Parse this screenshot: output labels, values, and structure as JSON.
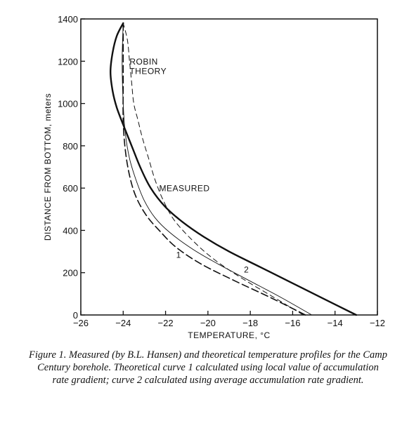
{
  "chart_data": {
    "type": "line",
    "xlabel": "TEMPERATURE, °C",
    "ylabel": "DISTANCE FROM BOTTOM, meters",
    "xlim": [
      -26,
      -12
    ],
    "ylim": [
      0,
      1400
    ],
    "x_ticks": [
      -26,
      -24,
      -22,
      -20,
      -18,
      -16,
      -14,
      -12
    ],
    "y_ticks": [
      0,
      200,
      400,
      600,
      800,
      1000,
      1200,
      1400
    ],
    "grid": false,
    "series": [
      {
        "name": "MEASURED",
        "style": "thick-solid",
        "points": [
          [
            -13.0,
            0
          ],
          [
            -14.5,
            75
          ],
          [
            -16.0,
            150
          ],
          [
            -17.5,
            225
          ],
          [
            -19.0,
            300
          ],
          [
            -20.2,
            370
          ],
          [
            -21.2,
            440
          ],
          [
            -22.0,
            510
          ],
          [
            -22.7,
            600
          ],
          [
            -23.2,
            700
          ],
          [
            -23.6,
            800
          ],
          [
            -24.0,
            900
          ],
          [
            -24.3,
            980
          ],
          [
            -24.5,
            1060
          ],
          [
            -24.6,
            1150
          ],
          [
            -24.5,
            1240
          ],
          [
            -24.3,
            1320
          ],
          [
            -24.0,
            1380
          ]
        ]
      },
      {
        "name": "2",
        "style": "thin-solid",
        "points": [
          [
            -15.1,
            0
          ],
          [
            -16.5,
            80
          ],
          [
            -18.0,
            160
          ],
          [
            -19.5,
            240
          ],
          [
            -20.7,
            310
          ],
          [
            -21.8,
            390
          ],
          [
            -22.5,
            460
          ],
          [
            -23.0,
            540
          ],
          [
            -23.4,
            640
          ],
          [
            -23.7,
            740
          ],
          [
            -23.9,
            860
          ],
          [
            -24.0,
            1000
          ],
          [
            -24.05,
            1200
          ],
          [
            -24.0,
            1380
          ]
        ]
      },
      {
        "name": "1",
        "style": "thick-dashed",
        "points": [
          [
            -15.4,
            0
          ],
          [
            -17.0,
            80
          ],
          [
            -18.7,
            160
          ],
          [
            -20.3,
            240
          ],
          [
            -21.5,
            320
          ],
          [
            -22.3,
            400
          ],
          [
            -22.9,
            470
          ],
          [
            -23.4,
            560
          ],
          [
            -23.7,
            660
          ],
          [
            -23.9,
            780
          ],
          [
            -24.0,
            920
          ],
          [
            -24.0,
            1100
          ],
          [
            -24.0,
            1380
          ]
        ]
      },
      {
        "name": "ROBIN THEORY",
        "style": "thin-dashed",
        "points": [
          [
            -15.5,
            0
          ],
          [
            -17.0,
            90
          ],
          [
            -18.5,
            180
          ],
          [
            -19.8,
            270
          ],
          [
            -20.8,
            360
          ],
          [
            -21.6,
            450
          ],
          [
            -22.1,
            540
          ],
          [
            -22.5,
            640
          ],
          [
            -22.8,
            740
          ],
          [
            -23.1,
            840
          ],
          [
            -23.3,
            920
          ],
          [
            -23.5,
            1000
          ],
          [
            -23.6,
            1100
          ],
          [
            -23.7,
            1200
          ],
          [
            -23.8,
            1300
          ],
          [
            -24.0,
            1380
          ]
        ]
      }
    ],
    "annotations": [
      {
        "text": "ROBIN",
        "x": -23.7,
        "y": 1185
      },
      {
        "text": "THEORY",
        "x": -23.7,
        "y": 1140
      },
      {
        "text": "MEASURED",
        "x": -22.3,
        "y": 585
      },
      {
        "text": "1",
        "x": -21.5,
        "y": 270
      },
      {
        "text": "2",
        "x": -18.3,
        "y": 200
      }
    ]
  },
  "caption": "Figure 1.  Measured (by B.L. Hansen) and theoretical temperature profiles for the Camp Century borehole.  Theoretical curve 1 calculated using local value of accumulation rate gradient; curve 2 calculated using average accumulation rate gradient."
}
